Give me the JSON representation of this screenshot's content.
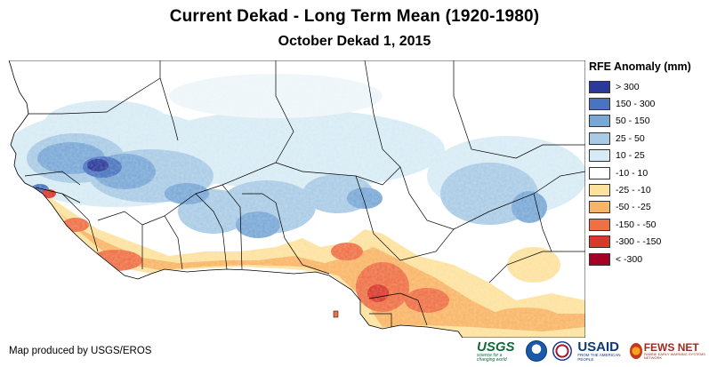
{
  "title": "Current Dekad - Long Term Mean (1920-1980)",
  "subtitle": "October Dekad 1, 2015",
  "legend": {
    "title": "RFE Anomaly (mm)",
    "items": [
      {
        "label": "> 300",
        "color": "#2b3a98"
      },
      {
        "label": "150 - 300",
        "color": "#4a74bf"
      },
      {
        "label": "50 - 150",
        "color": "#7aa8d6"
      },
      {
        "label": "25 - 50",
        "color": "#a9cbe5"
      },
      {
        "label": "10 - 25",
        "color": "#d7ebf4"
      },
      {
        "label": "-10 - 10",
        "color": "#ffffff"
      },
      {
        "label": "-25 - -10",
        "color": "#fde29e"
      },
      {
        "label": "-50 - -25",
        "color": "#f9b566"
      },
      {
        "label": "-150 - -50",
        "color": "#ef7045"
      },
      {
        "label": "-300 - -150",
        "color": "#d8392b"
      },
      {
        "label": "< -300",
        "color": "#a50026"
      }
    ]
  },
  "credit": "Map produced by USGS/EROS",
  "logos": {
    "usgs": "USGS",
    "usgs_tagline": "science for a changing world",
    "usaid": "USAID",
    "usaid_tagline": "FROM THE AMERICAN PEOPLE",
    "fews": "FEWS NET",
    "fews_tagline": "FAMINE EARLY WARNING SYSTEMS NETWORK"
  },
  "colors": {
    "border": "#000000",
    "ocean": "#ffffff"
  }
}
